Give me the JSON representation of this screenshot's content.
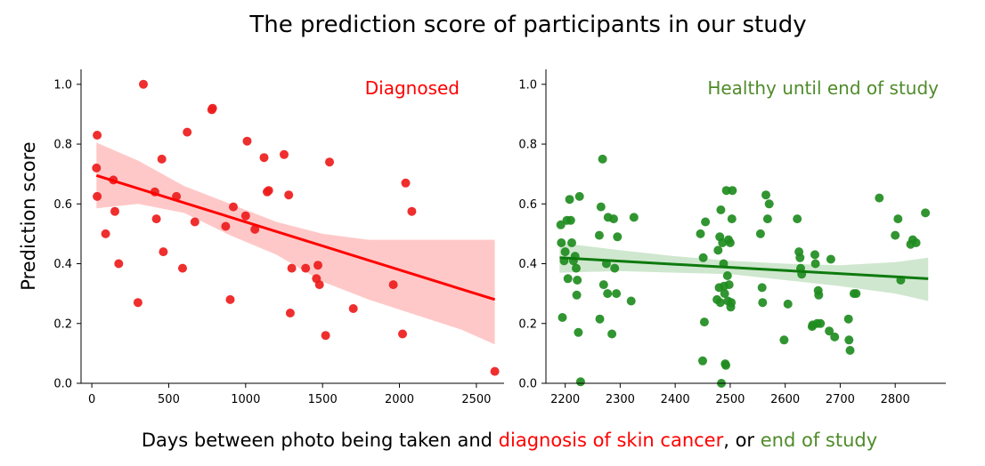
{
  "title": "The prediction score of participants in our study",
  "ylabel": "Prediction score",
  "xlabel_parts": [
    {
      "text": "Days between photo being taken and ",
      "color": "#000000"
    },
    {
      "text": "diagnosis of skin cancer",
      "color": "#ff0000"
    },
    {
      "text": ", or ",
      "color": "#000000"
    },
    {
      "text": "end of study",
      "color": "#4f8b2a"
    }
  ],
  "chart_data": [
    {
      "type": "scatter",
      "label": "Diagnosed",
      "label_color": "#ff0000",
      "point_color": "#ee1c1c",
      "band_color": "#ffc8c8",
      "xlim": [
        -70,
        2680
      ],
      "ylim": [
        0,
        1.05
      ],
      "xticks": [
        0,
        500,
        1000,
        1500,
        2000,
        2500
      ],
      "yticks": [
        0.0,
        0.2,
        0.4,
        0.6,
        0.8,
        1.0
      ],
      "fit": {
        "x": [
          30,
          2620
        ],
        "y": [
          0.695,
          0.28
        ]
      },
      "ci_upper": [
        [
          30,
          0.805
        ],
        [
          300,
          0.745
        ],
        [
          600,
          0.66
        ],
        [
          900,
          0.6
        ],
        [
          1200,
          0.54
        ],
        [
          1500,
          0.5
        ],
        [
          1800,
          0.48
        ],
        [
          2100,
          0.48
        ],
        [
          2400,
          0.48
        ],
        [
          2620,
          0.48
        ]
      ],
      "ci_lower": [
        [
          30,
          0.585
        ],
        [
          300,
          0.6
        ],
        [
          600,
          0.57
        ],
        [
          900,
          0.495
        ],
        [
          1200,
          0.43
        ],
        [
          1500,
          0.34
        ],
        [
          1800,
          0.28
        ],
        [
          2100,
          0.23
        ],
        [
          2400,
          0.18
        ],
        [
          2620,
          0.13
        ]
      ],
      "points": [
        [
          35,
          0.83
        ],
        [
          30,
          0.72
        ],
        [
          35,
          0.625
        ],
        [
          90,
          0.5
        ],
        [
          140,
          0.68
        ],
        [
          150,
          0.575
        ],
        [
          175,
          0.4
        ],
        [
          300,
          0.27
        ],
        [
          335,
          1.0
        ],
        [
          410,
          0.64
        ],
        [
          420,
          0.55
        ],
        [
          455,
          0.75
        ],
        [
          465,
          0.44
        ],
        [
          550,
          0.625
        ],
        [
          590,
          0.385
        ],
        [
          620,
          0.84
        ],
        [
          670,
          0.54
        ],
        [
          780,
          0.915
        ],
        [
          785,
          0.92
        ],
        [
          870,
          0.525
        ],
        [
          900,
          0.28
        ],
        [
          920,
          0.59
        ],
        [
          1000,
          0.56
        ],
        [
          1010,
          0.81
        ],
        [
          1060,
          0.515
        ],
        [
          1120,
          0.755
        ],
        [
          1140,
          0.64
        ],
        [
          1150,
          0.645
        ],
        [
          1250,
          0.765
        ],
        [
          1280,
          0.63
        ],
        [
          1290,
          0.235
        ],
        [
          1300,
          0.385
        ],
        [
          1390,
          0.385
        ],
        [
          1460,
          0.35
        ],
        [
          1470,
          0.395
        ],
        [
          1480,
          0.33
        ],
        [
          1520,
          0.16
        ],
        [
          1545,
          0.74
        ],
        [
          1700,
          0.25
        ],
        [
          1960,
          0.33
        ],
        [
          2020,
          0.165
        ],
        [
          2040,
          0.67
        ],
        [
          2080,
          0.575
        ],
        [
          2620,
          0.04
        ]
      ]
    },
    {
      "type": "scatter",
      "label": "Healthy until end of study",
      "label_color": "#4f8b2a",
      "point_color": "#1f8c1f",
      "band_color": "#cfe7cf",
      "xlim": [
        2165,
        2892
      ],
      "ylim": [
        0,
        1.05
      ],
      "xticks": [
        2200,
        2300,
        2400,
        2500,
        2600,
        2700,
        2800
      ],
      "yticks": [
        0.0,
        0.2,
        0.4,
        0.6,
        0.8,
        1.0
      ],
      "fit": {
        "x": [
          2190,
          2860
        ],
        "y": [
          0.42,
          0.35
        ]
      },
      "ci_upper": [
        [
          2190,
          0.47
        ],
        [
          2300,
          0.445
        ],
        [
          2400,
          0.425
        ],
        [
          2500,
          0.41
        ],
        [
          2600,
          0.4
        ],
        [
          2700,
          0.395
        ],
        [
          2800,
          0.405
        ],
        [
          2860,
          0.42
        ]
      ],
      "ci_lower": [
        [
          2190,
          0.37
        ],
        [
          2300,
          0.375
        ],
        [
          2400,
          0.37
        ],
        [
          2500,
          0.365
        ],
        [
          2600,
          0.345
        ],
        [
          2700,
          0.325
        ],
        [
          2800,
          0.3
        ],
        [
          2860,
          0.275
        ]
      ],
      "points": [
        [
          2192,
          0.53
        ],
        [
          2193,
          0.47
        ],
        [
          2195,
          0.22
        ],
        [
          2198,
          0.41
        ],
        [
          2200,
          0.44
        ],
        [
          2203,
          0.545
        ],
        [
          2205,
          0.35
        ],
        [
          2208,
          0.615
        ],
        [
          2210,
          0.545
        ],
        [
          2212,
          0.47
        ],
        [
          2215,
          0.41
        ],
        [
          2218,
          0.425
        ],
        [
          2220,
          0.385
        ],
        [
          2221,
          0.295
        ],
        [
          2222,
          0.345
        ],
        [
          2224,
          0.17
        ],
        [
          2226,
          0.625
        ],
        [
          2228,
          0.005
        ],
        [
          2262,
          0.495
        ],
        [
          2263,
          0.215
        ],
        [
          2265,
          0.59
        ],
        [
          2268,
          0.75
        ],
        [
          2270,
          0.33
        ],
        [
          2275,
          0.4
        ],
        [
          2277,
          0.3
        ],
        [
          2278,
          0.555
        ],
        [
          2285,
          0.165
        ],
        [
          2288,
          0.55
        ],
        [
          2290,
          0.385
        ],
        [
          2293,
          0.3
        ],
        [
          2295,
          0.49
        ],
        [
          2320,
          0.275
        ],
        [
          2325,
          0.555
        ],
        [
          2446,
          0.5
        ],
        [
          2450,
          0.075
        ],
        [
          2451,
          0.42
        ],
        [
          2453,
          0.205
        ],
        [
          2455,
          0.54
        ],
        [
          2476,
          0.28
        ],
        [
          2478,
          0.445
        ],
        [
          2480,
          0.32
        ],
        [
          2481,
          0.49
        ],
        [
          2482,
          0.27
        ],
        [
          2483,
          0.58
        ],
        [
          2484,
          0.0
        ],
        [
          2486,
          0.47
        ],
        [
          2488,
          0.4
        ],
        [
          2489,
          0.325
        ],
        [
          2490,
          0.3
        ],
        [
          2491,
          0.065
        ],
        [
          2492,
          0.06
        ],
        [
          2493,
          0.645
        ],
        [
          2495,
          0.36
        ],
        [
          2496,
          0.275
        ],
        [
          2497,
          0.48
        ],
        [
          2498,
          0.33
        ],
        [
          2500,
          0.47
        ],
        [
          2501,
          0.255
        ],
        [
          2502,
          0.27
        ],
        [
          2503,
          0.55
        ],
        [
          2504,
          0.645
        ],
        [
          2555,
          0.5
        ],
        [
          2558,
          0.32
        ],
        [
          2559,
          0.27
        ],
        [
          2565,
          0.63
        ],
        [
          2568,
          0.55
        ],
        [
          2571,
          0.6
        ],
        [
          2598,
          0.145
        ],
        [
          2605,
          0.265
        ],
        [
          2622,
          0.55
        ],
        [
          2625,
          0.44
        ],
        [
          2627,
          0.42
        ],
        [
          2628,
          0.385
        ],
        [
          2630,
          0.365
        ],
        [
          2649,
          0.19
        ],
        [
          2650,
          0.195
        ],
        [
          2654,
          0.43
        ],
        [
          2655,
          0.4
        ],
        [
          2658,
          0.2
        ],
        [
          2660,
          0.31
        ],
        [
          2661,
          0.295
        ],
        [
          2664,
          0.2
        ],
        [
          2680,
          0.175
        ],
        [
          2683,
          0.415
        ],
        [
          2690,
          0.155
        ],
        [
          2715,
          0.215
        ],
        [
          2716,
          0.145
        ],
        [
          2718,
          0.11
        ],
        [
          2725,
          0.3
        ],
        [
          2729,
          0.3
        ],
        [
          2771,
          0.62
        ],
        [
          2800,
          0.495
        ],
        [
          2805,
          0.55
        ],
        [
          2810,
          0.345
        ],
        [
          2828,
          0.465
        ],
        [
          2832,
          0.48
        ],
        [
          2838,
          0.47
        ],
        [
          2855,
          0.57
        ]
      ]
    }
  ]
}
